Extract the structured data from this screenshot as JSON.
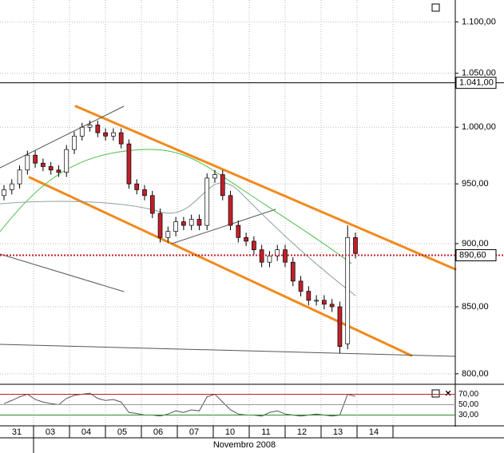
{
  "chart_data": {
    "type": "candlestick",
    "log_scale": true,
    "grid": true,
    "up_color": "#ffffff",
    "down_color": "#c0202a",
    "open": [
      940,
      945,
      950,
      962,
      975,
      968,
      965,
      962,
      960,
      980,
      992,
      1000,
      1002,
      995,
      992,
      995,
      985,
      950,
      945,
      940,
      925,
      905,
      910,
      918,
      915,
      920,
      915,
      955,
      958,
      940,
      915,
      905,
      902,
      895,
      885,
      890,
      895,
      885,
      870,
      862,
      855,
      855,
      852,
      850,
      822,
      905
    ],
    "high": [
      949,
      954,
      966,
      979,
      979,
      972,
      969,
      966,
      984,
      996,
      1004,
      1006,
      1006,
      999,
      999,
      999,
      989,
      954,
      949,
      944,
      929,
      914,
      922,
      922,
      924,
      924,
      959,
      962,
      962,
      944,
      919,
      909,
      906,
      899,
      894,
      899,
      899,
      889,
      874,
      866,
      859,
      859,
      856,
      854,
      915,
      909
    ],
    "low": [
      936,
      941,
      946,
      958,
      964,
      961,
      958,
      956,
      956,
      976,
      988,
      996,
      991,
      988,
      988,
      981,
      946,
      941,
      936,
      921,
      901,
      901,
      906,
      911,
      911,
      911,
      911,
      951,
      936,
      911,
      901,
      898,
      891,
      881,
      881,
      886,
      881,
      866,
      858,
      851,
      851,
      848,
      846,
      815,
      818,
      888
    ],
    "close": [
      945,
      950,
      962,
      975,
      968,
      965,
      962,
      960,
      980,
      992,
      1000,
      1002,
      995,
      992,
      995,
      985,
      950,
      945,
      940,
      925,
      905,
      910,
      918,
      915,
      920,
      915,
      955,
      958,
      940,
      915,
      905,
      902,
      895,
      885,
      890,
      895,
      885,
      870,
      862,
      855,
      855,
      852,
      850,
      820,
      905,
      892
    ],
    "ylim": [
      793,
      1122
    ],
    "yticks": [
      {
        "value": 800,
        "label": "800,00"
      },
      {
        "value": 850,
        "label": "850,00"
      },
      {
        "value": 900,
        "label": "900,00"
      },
      {
        "value": 950,
        "label": "950,00"
      },
      {
        "value": 1000,
        "label": "1.000,00"
      },
      {
        "value": 1050,
        "label": "1.050,00"
      },
      {
        "value": 1100,
        "label": "1.100,00"
      }
    ],
    "levels": [
      {
        "value": 1041,
        "label": "1.041,00",
        "color": "#000000",
        "label_color": "#c0202a"
      },
      {
        "value": 890.6,
        "label": "890,60",
        "color": "#c0202a",
        "label_color": "#000000"
      }
    ],
    "rsi": {
      "color": "#555555",
      "values": [
        52,
        58,
        65,
        70,
        60,
        55,
        52,
        50,
        62,
        68,
        70,
        72,
        62,
        58,
        60,
        55,
        35,
        33,
        30,
        30,
        28,
        32,
        38,
        35,
        40,
        38,
        65,
        70,
        55,
        40,
        32,
        30,
        30,
        28,
        35,
        38,
        32,
        30,
        28,
        30,
        32,
        30,
        28,
        30,
        70,
        66
      ],
      "ylim": [
        10.8,
        87.6
      ],
      "yticks": [
        {
          "value": 30,
          "label": "30,00",
          "color": "#2a8a2a"
        },
        {
          "value": 50,
          "label": "50,00",
          "color": "#999999"
        },
        {
          "value": 70,
          "label": "70,00",
          "color": "#c0202a"
        }
      ]
    },
    "x_labels": [
      "31",
      "03",
      "04",
      "05",
      "06",
      "07",
      "10",
      "11",
      "12",
      "13",
      "14"
    ],
    "x_title": "Novembro 2008"
  }
}
